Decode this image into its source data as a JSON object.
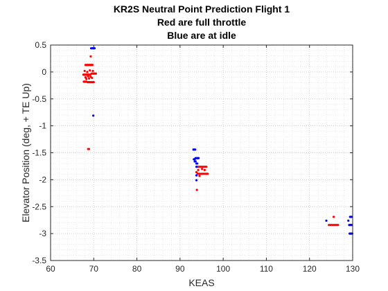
{
  "chart_data": {
    "type": "scatter",
    "title": [
      "KR2S Neutral Point Prediction Flight 1",
      "Red are full throttle",
      "Blue are at idle"
    ],
    "xlabel": "KEAS",
    "ylabel": "Elevator Position (deg, + TE Up)",
    "xlim": [
      60,
      130
    ],
    "ylim": [
      -3.5,
      0.5
    ],
    "xticks": [
      60,
      70,
      80,
      90,
      100,
      110,
      120,
      130
    ],
    "yticks": [
      0.5,
      0,
      -0.5,
      -1,
      -1.5,
      -2,
      -2.5,
      -3,
      -3.5
    ],
    "xtick_labels": [
      "60",
      "70",
      "80",
      "90",
      "100",
      "110",
      "120",
      "130"
    ],
    "ytick_labels": [
      "0.5",
      "0",
      "-0.5",
      "-1",
      "-1.5",
      "-2",
      "-2.5",
      "-3",
      "-3.5"
    ],
    "grid": "major and minor, dotted",
    "series": [
      {
        "color": "#ff0000",
        "points": [
          [
            67.6,
            -0.05
          ],
          [
            67.8,
            -0.05
          ],
          [
            68.0,
            -0.05
          ],
          [
            68.2,
            -0.05
          ],
          [
            68.4,
            -0.05
          ],
          [
            68.6,
            -0.05
          ],
          [
            68.8,
            -0.05
          ],
          [
            69.0,
            -0.05
          ],
          [
            69.2,
            -0.05
          ],
          [
            69.5,
            -0.03
          ],
          [
            69.7,
            -0.03
          ],
          [
            69.9,
            -0.03
          ],
          [
            70.1,
            -0.03
          ],
          [
            70.3,
            -0.03
          ],
          [
            70.5,
            -0.03
          ],
          [
            67.7,
            -0.18
          ],
          [
            67.9,
            -0.18
          ],
          [
            68.1,
            -0.18
          ],
          [
            68.3,
            -0.18
          ],
          [
            68.6,
            -0.19
          ],
          [
            68.8,
            -0.19
          ],
          [
            69.0,
            -0.19
          ],
          [
            69.2,
            -0.19
          ],
          [
            69.4,
            -0.19
          ],
          [
            69.6,
            -0.19
          ],
          [
            69.8,
            -0.19
          ],
          [
            70.0,
            -0.19
          ],
          [
            68.1,
            0.13
          ],
          [
            68.3,
            0.13
          ],
          [
            68.5,
            0.13
          ],
          [
            68.7,
            0.13
          ],
          [
            68.9,
            0.13
          ],
          [
            69.1,
            0.13
          ],
          [
            69.3,
            0.13
          ],
          [
            69.5,
            0.13
          ],
          [
            69.7,
            0.13
          ],
          [
            67.9,
            0.02
          ],
          [
            68.1,
            -0.1
          ],
          [
            68.3,
            -0.13
          ],
          [
            68.5,
            0.0
          ],
          [
            68.7,
            -0.08
          ],
          [
            68.9,
            -0.12
          ],
          [
            69.1,
            0.03
          ],
          [
            69.3,
            -0.09
          ],
          [
            69.6,
            -0.11
          ],
          [
            69.8,
            0.02
          ],
          [
            69.3,
            0.29
          ],
          [
            68.7,
            -1.43
          ],
          [
            68.9,
            -1.43
          ],
          [
            94.0,
            -1.76
          ],
          [
            94.3,
            -1.76
          ],
          [
            94.6,
            -1.76
          ],
          [
            94.9,
            -1.76
          ],
          [
            95.2,
            -1.76
          ],
          [
            95.5,
            -1.76
          ],
          [
            95.8,
            -1.76
          ],
          [
            96.1,
            -1.76
          ],
          [
            93.8,
            -1.86
          ],
          [
            94.1,
            -1.89
          ],
          [
            94.4,
            -1.89
          ],
          [
            94.7,
            -1.89
          ],
          [
            95.0,
            -1.89
          ],
          [
            95.3,
            -1.89
          ],
          [
            95.6,
            -1.89
          ],
          [
            95.9,
            -1.89
          ],
          [
            96.2,
            -1.89
          ],
          [
            96.4,
            -1.89
          ],
          [
            94.2,
            -1.82
          ],
          [
            94.5,
            -1.93
          ],
          [
            95.1,
            -1.8
          ],
          [
            95.7,
            -1.82
          ],
          [
            93.9,
            -2.19
          ],
          [
            124.5,
            -2.84
          ],
          [
            124.8,
            -2.84
          ],
          [
            125.1,
            -2.84
          ],
          [
            125.4,
            -2.84
          ],
          [
            125.7,
            -2.84
          ],
          [
            126.0,
            -2.84
          ],
          [
            126.3,
            -2.84
          ],
          [
            126.6,
            -2.84
          ],
          [
            125.6,
            -2.69
          ]
        ]
      },
      {
        "color": "#0000ff",
        "points": [
          [
            69.4,
            0.44
          ],
          [
            69.6,
            0.44
          ],
          [
            69.8,
            0.44
          ],
          [
            70.0,
            0.44
          ],
          [
            70.2,
            0.44
          ],
          [
            69.9,
            -0.81
          ],
          [
            93.1,
            -1.44
          ],
          [
            93.3,
            -1.44
          ],
          [
            93.5,
            -1.44
          ],
          [
            93.2,
            -1.62
          ],
          [
            93.4,
            -1.62
          ],
          [
            93.6,
            -1.6
          ],
          [
            93.9,
            -1.6
          ],
          [
            94.1,
            -1.6
          ],
          [
            94.3,
            -1.6
          ],
          [
            93.4,
            -1.66
          ],
          [
            93.6,
            -1.66
          ],
          [
            93.8,
            -1.7
          ],
          [
            94.0,
            -1.7
          ],
          [
            93.8,
            -1.76
          ],
          [
            93.8,
            -1.92
          ],
          [
            93.8,
            -2.01
          ],
          [
            123.9,
            -2.76
          ],
          [
            129.4,
            -2.69
          ],
          [
            129.6,
            -2.69
          ],
          [
            129.8,
            -2.69
          ],
          [
            129.2,
            -2.84
          ],
          [
            129.4,
            -2.84
          ],
          [
            129.6,
            -2.84
          ],
          [
            129.8,
            -2.84
          ],
          [
            129.3,
            -3.0
          ],
          [
            129.5,
            -3.0
          ],
          [
            129.7,
            -3.0
          ],
          [
            129.9,
            -3.0
          ],
          [
            129.0,
            -2.76
          ]
        ]
      }
    ]
  }
}
